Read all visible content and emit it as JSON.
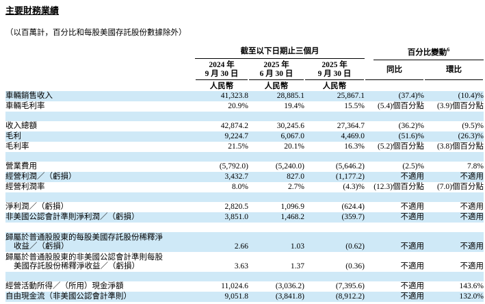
{
  "page": {
    "title": "主要財務業績",
    "note": "（以百萬計，百分比和每股美國存託股份數據除外）"
  },
  "colors": {
    "stripe": "#cfe9f7",
    "text": "#000000",
    "rule": "#000000"
  },
  "table": {
    "group_headers": {
      "period": "截至以下日期止三個月",
      "percent_change": "百分比變動",
      "percent_change_footnote": "6"
    },
    "columns": [
      {
        "line1": "2024 年",
        "line2": "9 月 30 日",
        "currency": "人民幣"
      },
      {
        "line1": "2025 年",
        "line2": "6 月 30 日",
        "currency": "人民幣"
      },
      {
        "line1": "2025 年",
        "line2": "9 月 30 日",
        "currency": "人民幣"
      },
      {
        "label": "同比"
      },
      {
        "label": "環比"
      }
    ],
    "rows": [
      {
        "type": "data",
        "label": "車輛銷售收入",
        "values": [
          "41,323.8",
          "28,885.1",
          "25,867.1",
          "(37.4)%",
          "(10.4)%"
        ]
      },
      {
        "type": "data",
        "label": "車輛毛利率",
        "values": [
          "20.9%",
          "19.4%",
          "15.5%",
          "(5.4)個百分點",
          "(3.9)個百分點"
        ]
      },
      {
        "type": "spacer"
      },
      {
        "type": "data",
        "label": "收入總額",
        "values": [
          "42,874.2",
          "30,245.6",
          "27,364.7",
          "(36.2)%",
          "(9.5)%"
        ]
      },
      {
        "type": "data",
        "label": "毛利",
        "values": [
          "9,224.7",
          "6,067.0",
          "4,469.0",
          "(51.6)%",
          "(26.3)%"
        ]
      },
      {
        "type": "data",
        "label": "毛利率",
        "values": [
          "21.5%",
          "20.1%",
          "16.3%",
          "(5.2)個百分點",
          "(3.8)個百分點"
        ]
      },
      {
        "type": "spacer"
      },
      {
        "type": "data",
        "label": "營業費用",
        "values": [
          "(5,792.0)",
          "(5,240.0)",
          "(5,646.2)",
          "(2.5)%",
          "7.8%"
        ]
      },
      {
        "type": "data",
        "label": "經營利潤／（虧損）",
        "values": [
          "3,432.7",
          "827.0",
          "(1,177.2)",
          "不適用",
          "不適用"
        ]
      },
      {
        "type": "data",
        "label": "經營利潤率",
        "values": [
          "8.0%",
          "2.7%",
          "(4.3)%",
          "(12.3)個百分點",
          "(7.0)個百分點"
        ]
      },
      {
        "type": "spacer"
      },
      {
        "type": "data",
        "label": "淨利潤／（虧損）",
        "values": [
          "2,820.5",
          "1,096.9",
          "(624.4)",
          "不適用",
          "不適用"
        ]
      },
      {
        "type": "data",
        "label": "非美國公認會計準則淨利潤／（虧損）",
        "values": [
          "3,851.0",
          "1,468.2",
          "(359.7)",
          "不適用",
          "不適用"
        ]
      },
      {
        "type": "spacer"
      },
      {
        "type": "data",
        "label": "歸屬於普通股股東的每股美國存託股份稀釋淨",
        "label2": "收益／（虧損）",
        "values": [
          "2.66",
          "1.03",
          "(0.62)",
          "不適用",
          "不適用"
        ]
      },
      {
        "type": "data",
        "label": "歸屬於普通股股東的非美國公認會計準則每股",
        "label2": "美國存託股份稀釋淨收益／（虧損）",
        "values": [
          "3.63",
          "1.37",
          "(0.36)",
          "不適用",
          "不適用"
        ]
      },
      {
        "type": "spacer"
      },
      {
        "type": "data",
        "label": "經營活動所得／（所用）現金淨額",
        "values": [
          "11,024.6",
          "(3,036.2)",
          "(7,395.6)",
          "不適用",
          "143.6%"
        ]
      },
      {
        "type": "data",
        "label": "自由現金流（非美國公認會計準則）",
        "values": [
          "9,051.8",
          "(3,841.8)",
          "(8,912.2)",
          "不適用",
          "132.0%"
        ]
      }
    ]
  }
}
